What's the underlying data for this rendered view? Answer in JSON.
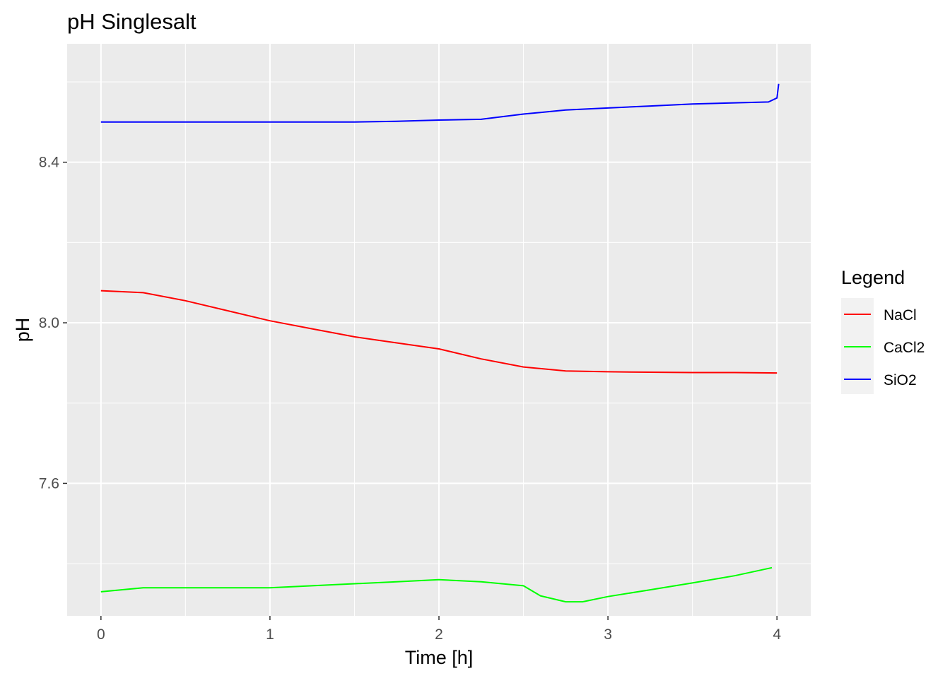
{
  "chart_data": {
    "type": "line",
    "title": "pH Singlesalt",
    "xlabel": "Time [h]",
    "ylabel": "pH",
    "xlim": [
      -0.2,
      4.2
    ],
    "ylim": [
      7.27,
      8.695
    ],
    "x_ticks": [
      0,
      1,
      2,
      3,
      4
    ],
    "x_tick_labels": [
      "0",
      "1",
      "2",
      "3",
      "4"
    ],
    "y_ticks": [
      7.6,
      8.0,
      8.4
    ],
    "y_tick_labels": [
      "7.6",
      "8.0",
      "8.4"
    ],
    "grid": true,
    "legend": {
      "title": "Legend",
      "position": "right"
    },
    "series": [
      {
        "name": "NaCl",
        "color": "#ff0000",
        "x": [
          0,
          0.25,
          0.5,
          0.75,
          1.0,
          1.25,
          1.5,
          1.75,
          2.0,
          2.25,
          2.5,
          2.75,
          3.0,
          3.25,
          3.5,
          3.75,
          4.0
        ],
        "y": [
          8.08,
          8.075,
          8.055,
          8.03,
          8.005,
          7.985,
          7.965,
          7.95,
          7.935,
          7.91,
          7.89,
          7.88,
          7.878,
          7.877,
          7.876,
          7.876,
          7.875
        ]
      },
      {
        "name": "CaCl2",
        "color": "#00ff00",
        "x": [
          0,
          0.25,
          0.5,
          1.0,
          1.25,
          1.5,
          1.75,
          2.0,
          2.25,
          2.5,
          2.6,
          2.75,
          2.85,
          3.0,
          3.25,
          3.5,
          3.75,
          3.97
        ],
        "y": [
          7.33,
          7.34,
          7.34,
          7.34,
          7.345,
          7.35,
          7.355,
          7.36,
          7.355,
          7.345,
          7.32,
          7.305,
          7.305,
          7.318,
          7.335,
          7.352,
          7.37,
          7.39
        ]
      },
      {
        "name": "SiO2",
        "color": "#0000ff",
        "x": [
          0,
          0.5,
          1.0,
          1.5,
          1.75,
          2.0,
          2.25,
          2.5,
          2.75,
          3.0,
          3.25,
          3.5,
          3.75,
          3.95,
          4.0,
          4.01
        ],
        "y": [
          8.5,
          8.5,
          8.5,
          8.5,
          8.502,
          8.505,
          8.507,
          8.52,
          8.53,
          8.535,
          8.54,
          8.545,
          8.548,
          8.55,
          8.56,
          8.595
        ]
      }
    ]
  }
}
